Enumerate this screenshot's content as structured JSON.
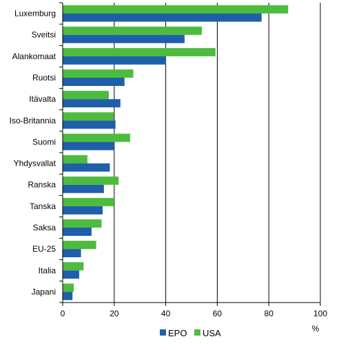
{
  "chart_data": {
    "type": "bar",
    "orientation": "horizontal",
    "categories": [
      "Luxemburg",
      "Sveitsi",
      "Alankomaat",
      "Ruotsi",
      "Itävalta",
      "Iso-Britannia",
      "Suomi",
      "Yhdysvallat",
      "Ranska",
      "Tanska",
      "Saksa",
      "EU-25",
      "Italia",
      "Japani"
    ],
    "series": [
      {
        "name": "EPO",
        "color": "#1f5faa",
        "values": [
          77.2,
          47.3,
          40.1,
          24.0,
          22.4,
          20.5,
          20.0,
          18.3,
          16.0,
          15.5,
          11.2,
          7.1,
          6.4,
          3.8
        ]
      },
      {
        "name": "USA",
        "color": "#4dbc3e",
        "values": [
          87.5,
          54.0,
          59.3,
          27.4,
          17.9,
          19.8,
          26.2,
          9.6,
          21.7,
          20.0,
          15.1,
          13.0,
          8.1,
          4.3
        ]
      }
    ],
    "xlim": [
      0,
      100
    ],
    "xticks": [
      0,
      20,
      40,
      60,
      80,
      100
    ],
    "xunit": "%",
    "grid": "vertical",
    "legend_position": "bottom"
  }
}
